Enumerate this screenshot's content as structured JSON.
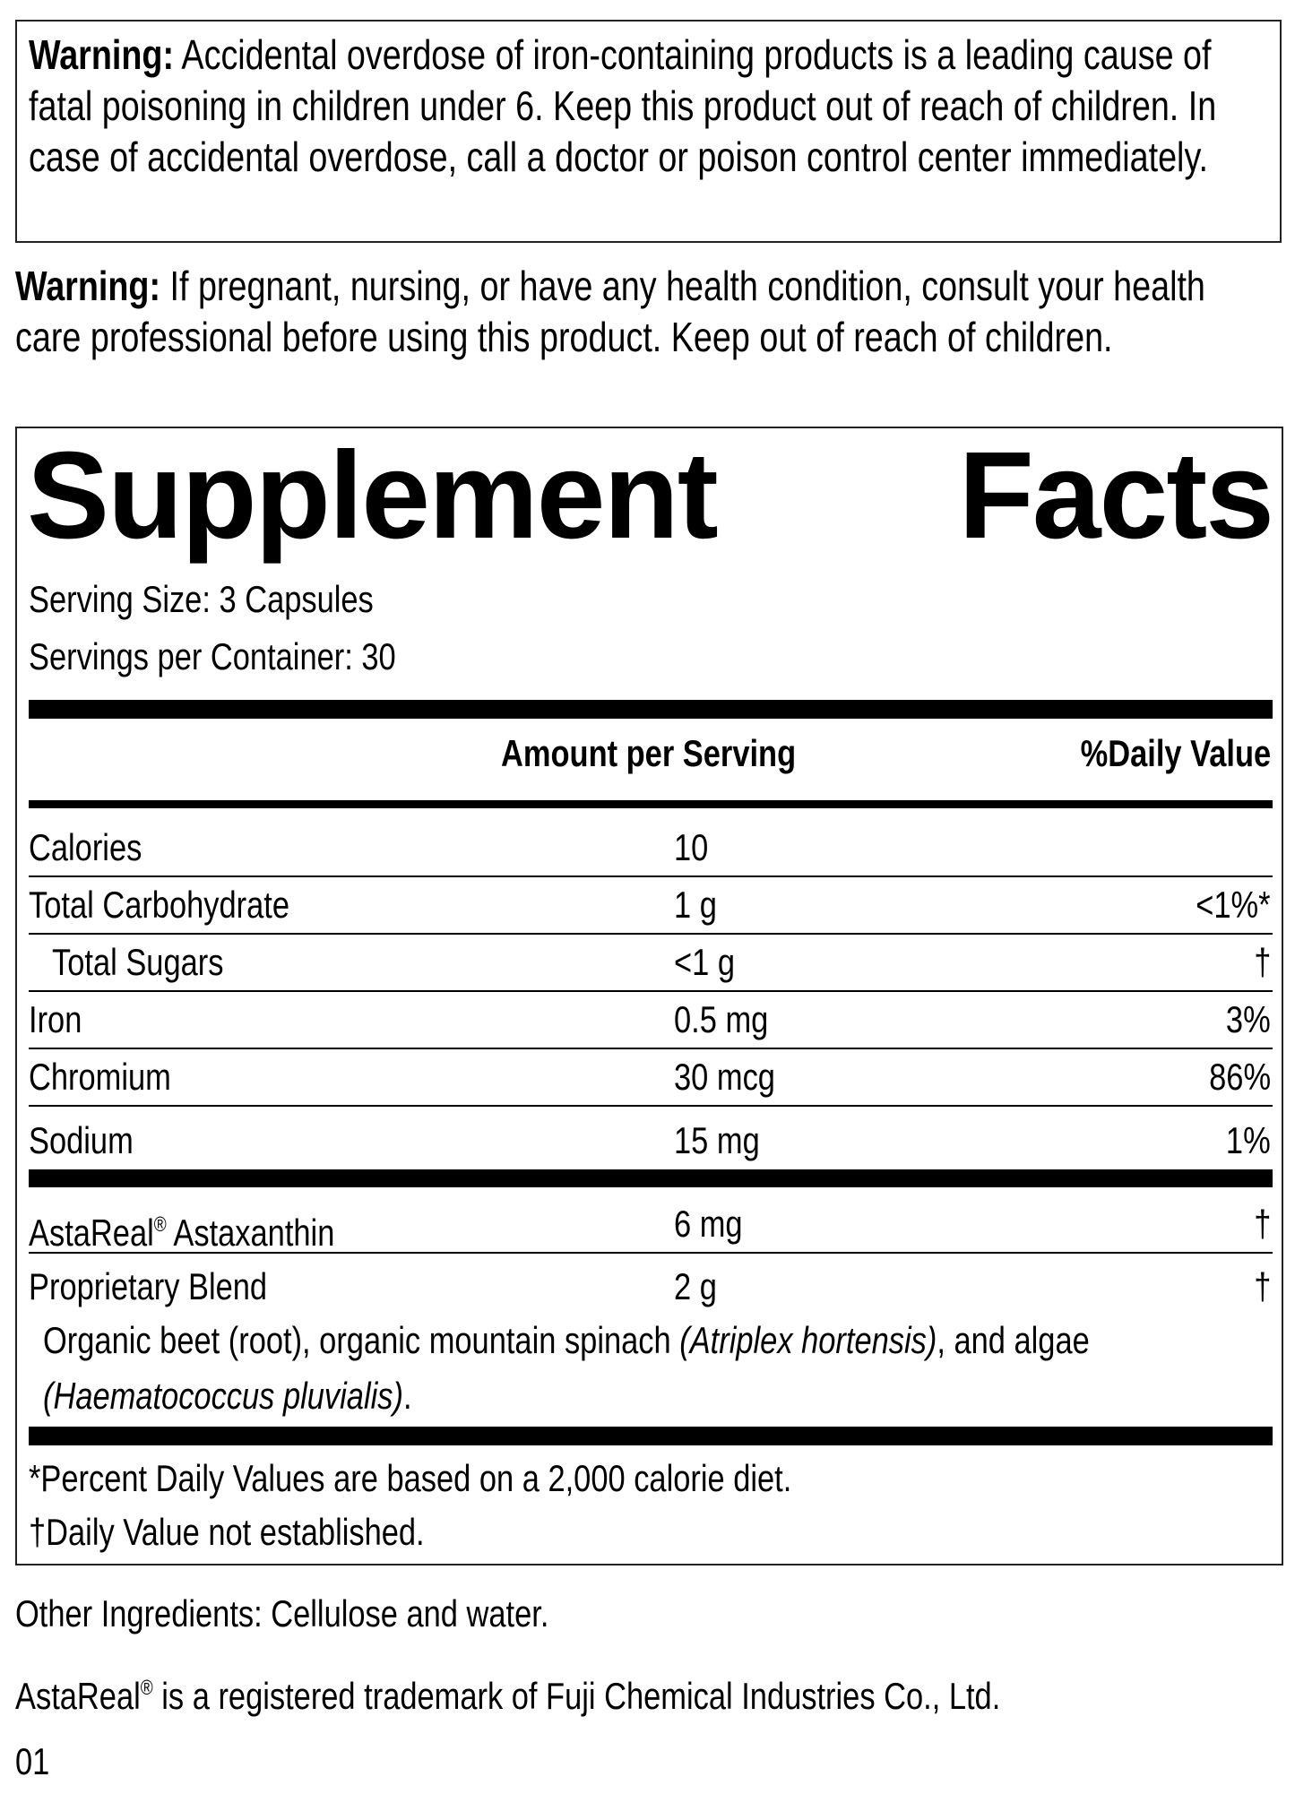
{
  "warning1": {
    "label": "Warning:",
    "text": " Accidental overdose of iron-containing products is a leading cause of fatal poisoning in children under 6. Keep this product out of reach of children. In case of accidental overdose, call a doctor or poison control center immediately."
  },
  "warning2": {
    "label": "Warning:",
    "text": " If pregnant, nursing, or have any health condition, consult your health care professional before using this product. Keep out of reach of children."
  },
  "facts": {
    "title_left": "Supplement",
    "title_right": "Facts",
    "serving_size": "Serving Size: 3 Capsules",
    "servings_per_container": "Servings per Container: 30",
    "col_amount": "Amount per Serving",
    "col_dv": "%Daily Value",
    "rows": [
      {
        "name": "Calories",
        "amount": "10",
        "dv": ""
      },
      {
        "name": "Total Carbohydrate",
        "amount": "1 g",
        "dv": "<1%*"
      },
      {
        "name": "Total Sugars",
        "amount": "<1 g",
        "dv": "†"
      },
      {
        "name": "Iron",
        "amount": "0.5 mg",
        "dv": "3%"
      },
      {
        "name": "Chromium",
        "amount": "30 mcg",
        "dv": "86%"
      },
      {
        "name": "Sodium",
        "amount": "15 mg",
        "dv": "1%"
      }
    ],
    "astareal": {
      "name": "AstaReal",
      "reg": "®",
      "name_rest": " Astaxanthin",
      "amount": "6 mg",
      "dv": "†"
    },
    "blend": {
      "name": "Proprietary Blend",
      "amount": "2 g",
      "dv": "†",
      "desc1": "Organic beet (root), organic mountain spinach ",
      "desc1_italic": "(Atriplex hortensis)",
      "desc1_end": ", and algae",
      "desc2_italic": "(Haematococcus pluvialis)",
      "desc2_end": "."
    },
    "footnote1": "*Percent Daily Values are based on a 2,000 calorie diet.",
    "footnote2": "†Daily Value not established."
  },
  "other_ingredients": "Other Ingredients: Cellulose and water.",
  "trademark": {
    "brand": "AstaReal",
    "reg": "®",
    "text": " is a registered trademark of Fuji Chemical Industries Co., Ltd."
  },
  "code": "01"
}
